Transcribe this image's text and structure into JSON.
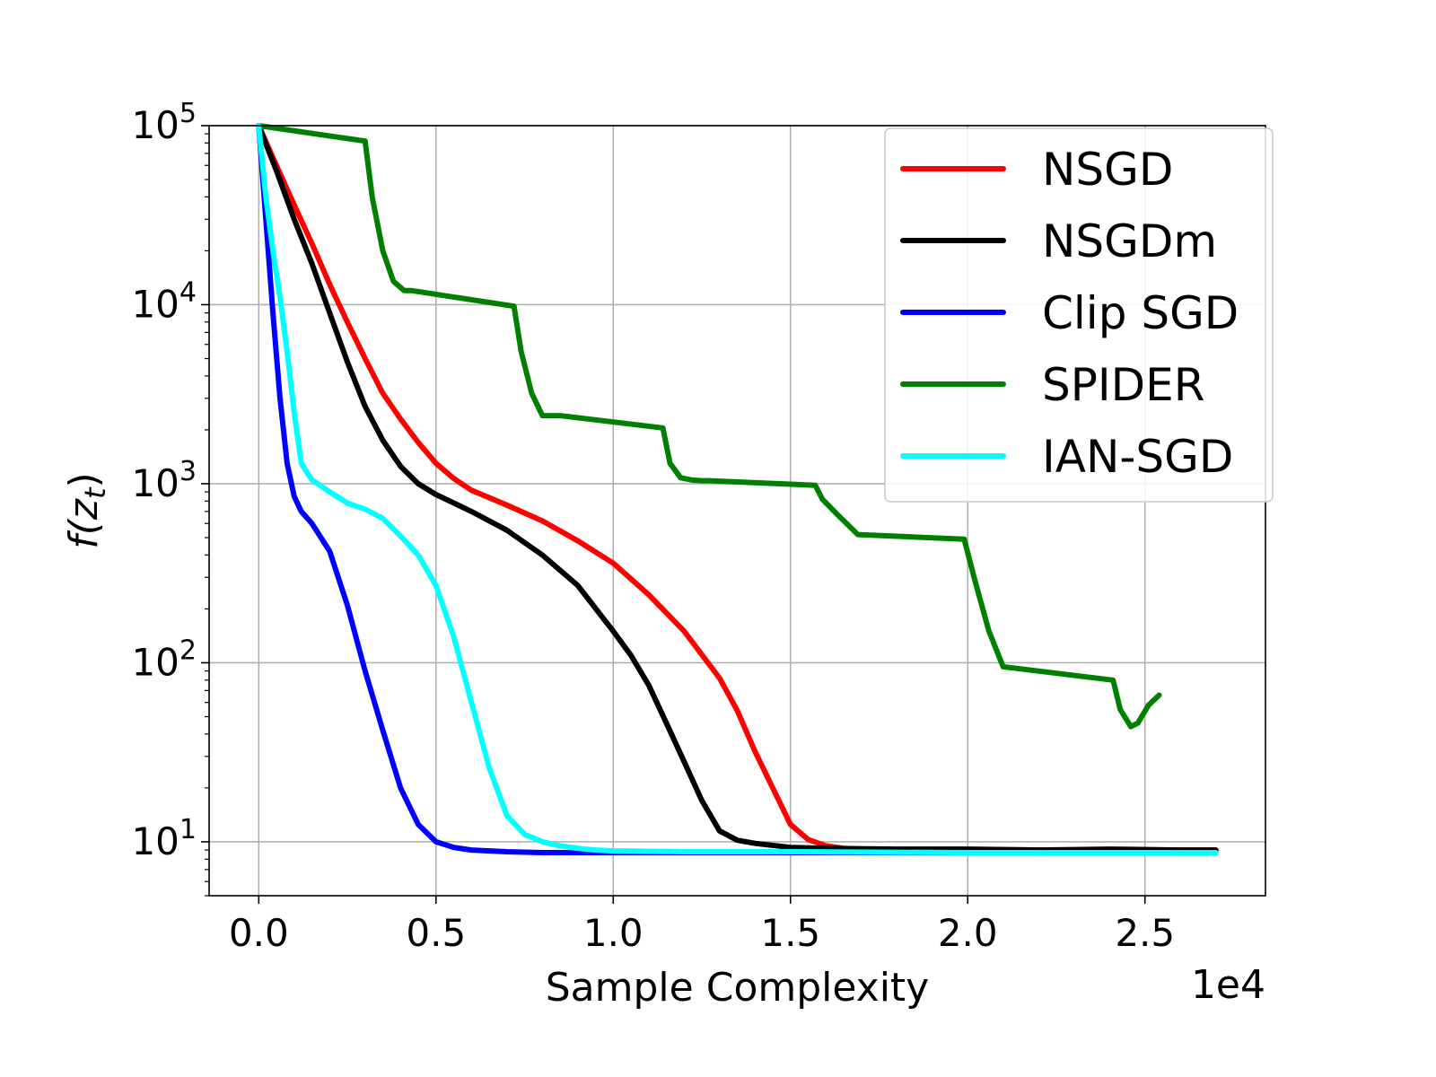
{
  "chart_data": {
    "type": "line",
    "title": "",
    "xlabel": "Sample Complexity",
    "x_offset_label": "1e4",
    "ylabel": "f(z_t)",
    "ylabel_parts": {
      "base": "f(z",
      "subscript": "t",
      "close": ")"
    },
    "yscale": "log",
    "xlim": [
      -0.14,
      2.84
    ],
    "ylim": [
      5,
      100000
    ],
    "grid": true,
    "legend_position": "top-right",
    "x_ticks": [
      {
        "value": 0.0,
        "label": "0.0"
      },
      {
        "value": 0.5,
        "label": "0.5"
      },
      {
        "value": 1.0,
        "label": "1.0"
      },
      {
        "value": 1.5,
        "label": "1.5"
      },
      {
        "value": 2.0,
        "label": "2.0"
      },
      {
        "value": 2.5,
        "label": "2.5"
      }
    ],
    "y_ticks": [
      {
        "value": 10,
        "base": "10",
        "exp": "1"
      },
      {
        "value": 100,
        "base": "10",
        "exp": "2"
      },
      {
        "value": 1000,
        "base": "10",
        "exp": "3"
      },
      {
        "value": 10000,
        "base": "10",
        "exp": "4"
      },
      {
        "value": 100000,
        "base": "10",
        "exp": "5"
      }
    ],
    "series": [
      {
        "name": "NSGD",
        "color": "#ff0000",
        "x": [
          0.0,
          0.05,
          0.1,
          0.15,
          0.2,
          0.25,
          0.3,
          0.35,
          0.4,
          0.45,
          0.5,
          0.55,
          0.6,
          0.7,
          0.8,
          0.9,
          1.0,
          1.1,
          1.2,
          1.3,
          1.35,
          1.4,
          1.45,
          1.5,
          1.55,
          1.6,
          1.65,
          1.7,
          1.8,
          2.0,
          2.2,
          2.4,
          2.6,
          2.7
        ],
        "y": [
          100000,
          60000,
          36000,
          22000,
          13000,
          8000,
          5000,
          3200,
          2300,
          1700,
          1300,
          1070,
          920,
          760,
          620,
          480,
          360,
          240,
          150,
          82,
          54,
          32,
          20,
          12.5,
          10.3,
          9.5,
          9.2,
          9.1,
          9.0,
          9.0,
          9.0,
          9.0,
          9.0,
          9.0
        ]
      },
      {
        "name": "NSGDm",
        "color": "#000000",
        "x": [
          0.0,
          0.05,
          0.1,
          0.15,
          0.2,
          0.25,
          0.3,
          0.35,
          0.4,
          0.45,
          0.5,
          0.6,
          0.7,
          0.8,
          0.9,
          1.0,
          1.05,
          1.1,
          1.15,
          1.2,
          1.25,
          1.3,
          1.35,
          1.4,
          1.5,
          1.6,
          1.8,
          2.0,
          2.2,
          2.4,
          2.6,
          2.7
        ],
        "y": [
          100000,
          56000,
          30000,
          17000,
          9000,
          4800,
          2700,
          1750,
          1250,
          1000,
          870,
          700,
          550,
          400,
          270,
          150,
          110,
          75,
          46,
          28,
          17,
          11.5,
          10.2,
          9.8,
          9.3,
          9.2,
          9.1,
          9.1,
          9.0,
          9.1,
          9.0,
          9.0
        ]
      },
      {
        "name": "Clip SGD",
        "color": "#0000ff",
        "x": [
          0.0,
          0.02,
          0.04,
          0.06,
          0.08,
          0.1,
          0.12,
          0.15,
          0.2,
          0.25,
          0.3,
          0.35,
          0.4,
          0.45,
          0.5,
          0.55,
          0.6,
          0.7,
          0.8,
          0.9,
          1.0,
          1.2,
          1.5,
          2.0,
          2.5,
          2.7
        ],
        "y": [
          100000,
          30000,
          9000,
          3000,
          1300,
          850,
          700,
          600,
          420,
          210,
          90,
          42,
          20,
          12.5,
          10.0,
          9.3,
          9.0,
          8.8,
          8.7,
          8.7,
          8.7,
          8.7,
          8.7,
          8.7,
          8.7,
          8.7
        ]
      },
      {
        "name": "SPIDER",
        "color": "#008000",
        "x": [
          0.0,
          0.3,
          0.32,
          0.35,
          0.38,
          0.41,
          0.43,
          0.72,
          0.74,
          0.77,
          0.8,
          0.83,
          0.85,
          1.14,
          1.16,
          1.19,
          1.22,
          1.25,
          1.27,
          1.57,
          1.59,
          1.63,
          1.69,
          1.99,
          2.02,
          2.06,
          2.1,
          2.41,
          2.43,
          2.46,
          2.48,
          2.51,
          2.54
        ],
        "y": [
          100000,
          82000,
          40000,
          20000,
          13500,
          12000,
          12000,
          9800,
          5500,
          3200,
          2400,
          2400,
          2400,
          2050,
          1300,
          1080,
          1050,
          1040,
          1040,
          980,
          820,
          680,
          520,
          490,
          290,
          150,
          95,
          80,
          55,
          44,
          46,
          58,
          66
        ]
      },
      {
        "name": "IAN-SGD",
        "color": "#00ffff",
        "x": [
          0.0,
          0.02,
          0.04,
          0.06,
          0.08,
          0.1,
          0.12,
          0.15,
          0.2,
          0.25,
          0.3,
          0.35,
          0.4,
          0.45,
          0.5,
          0.55,
          0.6,
          0.65,
          0.7,
          0.75,
          0.8,
          0.85,
          0.9,
          0.95,
          1.0,
          1.2,
          1.5,
          2.0,
          2.5,
          2.7
        ],
        "y": [
          100000,
          40000,
          20000,
          11000,
          5500,
          2500,
          1300,
          1050,
          900,
          780,
          720,
          640,
          510,
          400,
          270,
          140,
          60,
          26,
          14,
          11,
          10.0,
          9.5,
          9.2,
          9.0,
          8.9,
          8.8,
          8.8,
          8.7,
          8.7,
          8.7
        ]
      }
    ]
  }
}
